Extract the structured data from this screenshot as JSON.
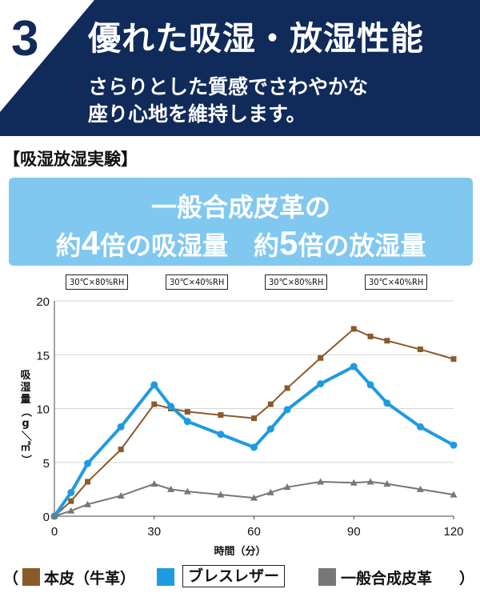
{
  "header": {
    "badge_number": "3",
    "title": "優れた吸湿・放湿性能",
    "subtitle_line1": "さらりとした質感でさわやかな",
    "subtitle_line2": "座り心地を維持します。",
    "bg_color": "#102a5a"
  },
  "experiment_title": "【吸湿放湿実験】",
  "banner": {
    "line1": "一般合成皮革の",
    "line2_pre": "約",
    "line2_num1": "4",
    "line2_mid": "倍の吸湿量　約",
    "line2_num2": "5",
    "line2_post": "倍の放湿量",
    "bg_color": "#80c8ef"
  },
  "conditions": [
    "30℃×80%RH",
    "30℃×40%RH",
    "30℃×80%RH",
    "30℃×40%RH"
  ],
  "legend": {
    "open_paren": "（",
    "item1": "本皮（牛革）",
    "item2": "ブレスレザー",
    "item3": "一般合成皮革",
    "close_paren": "）"
  },
  "chart_data": {
    "type": "line",
    "xlabel": "時間（分）",
    "ylabel": "吸湿量（g／㎡）",
    "xlim": [
      0,
      120
    ],
    "ylim": [
      0,
      20
    ],
    "xticks": [
      0,
      30,
      60,
      90,
      120
    ],
    "yticks": [
      0,
      5,
      10,
      15,
      20
    ],
    "grid": "horizontal",
    "legend_position": "bottom",
    "series": [
      {
        "name": "本皮（牛革）",
        "color": "#8a5a2b",
        "marker": "square",
        "x": [
          0,
          5,
          10,
          20,
          30,
          35,
          40,
          50,
          60,
          65,
          70,
          80,
          90,
          95,
          100,
          110,
          120
        ],
        "y": [
          0,
          1.4,
          3.2,
          6.2,
          10.4,
          10.0,
          9.7,
          9.4,
          9.1,
          10.4,
          11.9,
          14.7,
          17.4,
          16.7,
          16.3,
          15.5,
          14.6
        ]
      },
      {
        "name": "ブレスレザー",
        "color": "#1e9be0",
        "marker": "circle",
        "x": [
          0,
          5,
          10,
          20,
          30,
          35,
          40,
          50,
          60,
          65,
          70,
          80,
          90,
          95,
          100,
          110,
          120
        ],
        "y": [
          0,
          2.2,
          4.9,
          8.3,
          12.2,
          10.2,
          8.8,
          7.6,
          6.4,
          8.1,
          9.9,
          12.3,
          13.9,
          12.2,
          10.5,
          8.3,
          6.6
        ]
      },
      {
        "name": "一般合成皮革",
        "color": "#777777",
        "marker": "triangle",
        "x": [
          0,
          5,
          10,
          20,
          30,
          35,
          40,
          50,
          60,
          65,
          70,
          80,
          90,
          95,
          100,
          110,
          120
        ],
        "y": [
          0,
          0.5,
          1.1,
          1.9,
          3.0,
          2.5,
          2.3,
          2.0,
          1.7,
          2.2,
          2.7,
          3.2,
          3.1,
          3.2,
          3.0,
          2.5,
          2.0
        ]
      }
    ]
  }
}
